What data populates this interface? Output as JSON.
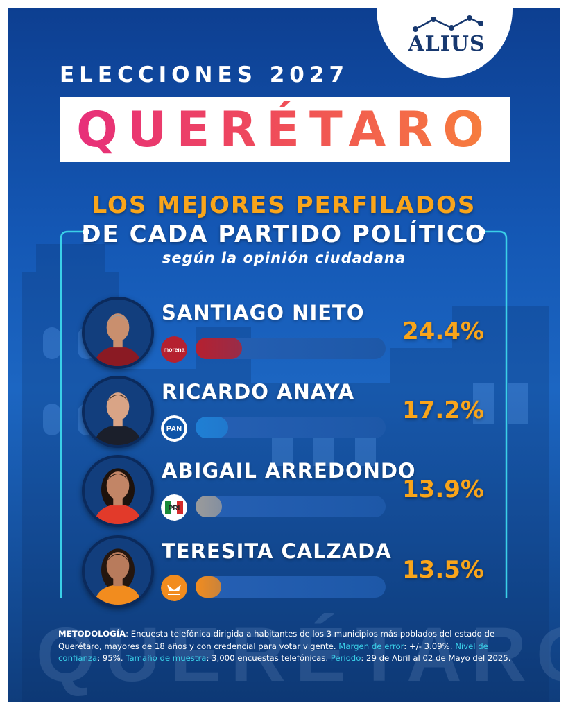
{
  "brand": {
    "name": "ALIUS"
  },
  "header": {
    "supertitle": "ELECCIONES 2027",
    "title": "QUERÉTARO"
  },
  "headline": {
    "line1": "LOS MEJORES PERFILADOS",
    "line2": "DE CADA PARTIDO POLÍTICO",
    "line3": "según la opinión ciudadana"
  },
  "colors": {
    "accent": "#f9a51a",
    "background": "#1457b4",
    "title_gradient": [
      "#e72f7a",
      "#f77f3c"
    ],
    "methodology_highlight": "#3ad0e8"
  },
  "candidates": [
    {
      "name": "SANTIAGO NIETO",
      "party": "morena",
      "party_label": "morena",
      "value": 24.4,
      "value_text": "24.4%",
      "bar_color": "#b5202f",
      "photo": "candidate-photo"
    },
    {
      "name": "RICARDO ANAYA",
      "party": "PAN",
      "party_label": "PAN",
      "value": 17.2,
      "value_text": "17.2%",
      "bar_color": "#1f7fd4",
      "photo": "candidate-photo"
    },
    {
      "name": "ABIGAIL ARREDONDO",
      "party": "PRI",
      "party_label": "PRI",
      "value": 13.9,
      "value_text": "13.9%",
      "bar_color": "#9b9b9b",
      "photo": "candidate-photo"
    },
    {
      "name": "TERESITA CALZADA",
      "party": "Movimiento Ciudadano",
      "party_label": "MOVIMIENTO CIUDADANO",
      "value": 13.5,
      "value_text": "13.5%",
      "bar_color": "#f28c1e",
      "photo": "candidate-photo"
    }
  ],
  "chart_data": {
    "type": "bar",
    "orientation": "horizontal",
    "categories": [
      "SANTIAGO NIETO",
      "RICARDO ANAYA",
      "ABIGAIL ARREDONDO",
      "TERESITA CALZADA"
    ],
    "values": [
      24.4,
      17.2,
      13.9,
      13.5
    ],
    "title": "LOS MEJORES PERFILADOS DE CADA PARTIDO POLÍTICO",
    "xlabel": "",
    "ylabel": "",
    "xlim": [
      0,
      100
    ],
    "grid": false,
    "data_labels": [
      "24.4%",
      "17.2%",
      "13.9%",
      "13.5%"
    ]
  },
  "methodology": {
    "label": "METODOLOGÍA",
    "text": "Encuesta telefónica dirigida a habitantes de los 3 municipios más poblados del estado de Querétaro, mayores de 18 años y con credencial para votar vigente.",
    "margin_label": "Margen de error",
    "margin_value": "+/- 3.09%.",
    "confidence_label": "Nivel de confianza",
    "confidence_value": "95%.",
    "sample_label": "Tamaño de muestra",
    "sample_value": "3,000 encuestas telefónicas.",
    "period_label": "Periodo",
    "period_value": "29 de Abril al 02 de Mayo del 2025."
  },
  "background": {
    "watermark_text": "QUERÉTARO"
  }
}
